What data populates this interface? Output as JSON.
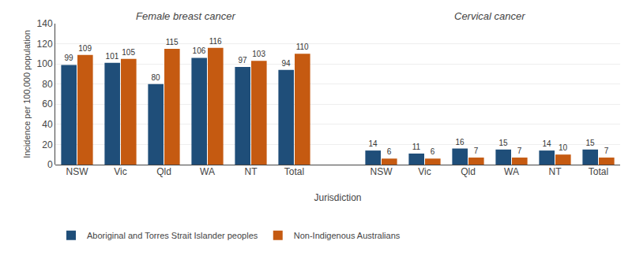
{
  "chart_data": {
    "type": "bar",
    "categories": [
      "NSW",
      "Vic",
      "Qld",
      "WA",
      "NT",
      "Total",
      "NSW",
      "Vic",
      "Qld",
      "WA",
      "NT",
      "Total"
    ],
    "series": [
      {
        "name": "Aboriginal and Torres Strait Islander peoples",
        "color": "#1F4E79",
        "values": [
          99,
          101,
          80,
          106,
          97,
          94,
          14,
          11,
          16,
          15,
          14,
          15
        ]
      },
      {
        "name": "Non-Indigenous Australians",
        "color": "#C55A11",
        "values": [
          109,
          105,
          115,
          116,
          103,
          110,
          6,
          6,
          7,
          7,
          10,
          7
        ]
      }
    ],
    "annotations": [
      "Female breast cancer",
      "Cervical cancer"
    ],
    "xlabel": "Jurisdiction",
    "ylabel": "Incidence per 100,000 population",
    "ylim": [
      0,
      140
    ],
    "yticks": [
      0,
      20,
      40,
      60,
      80,
      100,
      120,
      140
    ],
    "grid": true,
    "data_labels": true,
    "legend": "lower left"
  }
}
